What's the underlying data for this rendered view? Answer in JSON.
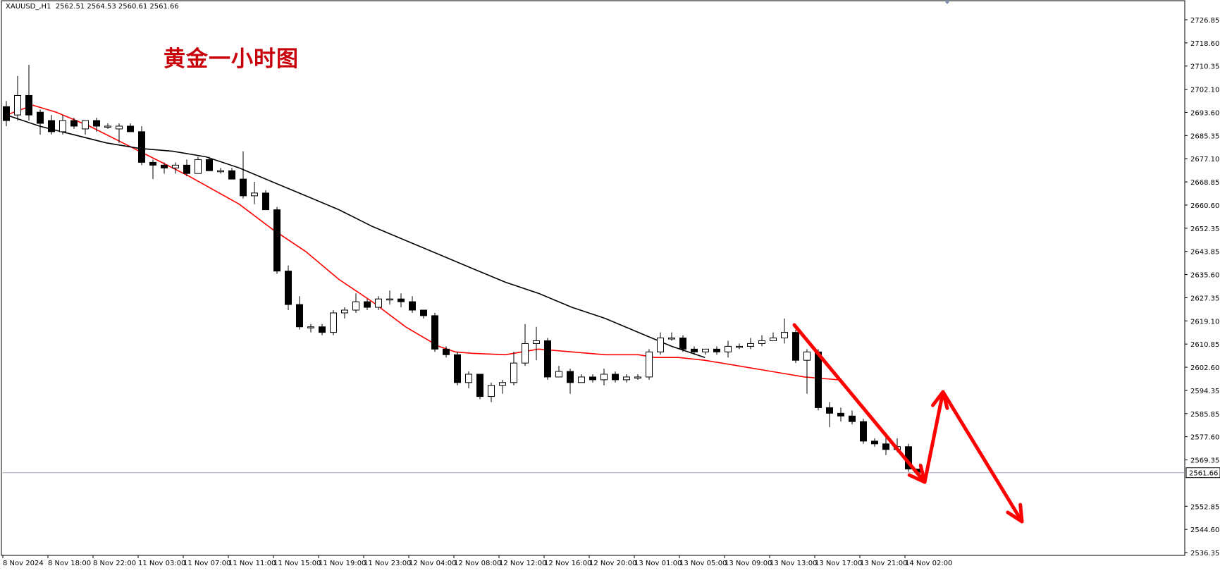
{
  "header": {
    "symbol": "XAUUSD_,H1",
    "ohlc": "2562.51 2564.53 2560.61 2561.66"
  },
  "overlay_title": "黄金一小时图",
  "colors": {
    "background": "#ffffff",
    "bull_fill": "#ffffff",
    "bear_fill": "#000000",
    "candle_outline": "#000000",
    "ma_fast": "#ff0000",
    "ma_slow": "#000000",
    "arrow": "#ff0000",
    "price_line": "#a0a8b8"
  },
  "chart_data": {
    "type": "candlestick",
    "title": "",
    "ylim": [
      2532,
      2731
    ],
    "y_ticks": [
      "2726.85",
      "2718.60",
      "2710.35",
      "2702.10",
      "2693.60",
      "2685.35",
      "2677.10",
      "2668.85",
      "2660.60",
      "2652.35",
      "2643.85",
      "2635.60",
      "2627.35",
      "2619.10",
      "2610.85",
      "2602.60",
      "2594.35",
      "2585.85",
      "2577.60",
      "2569.35",
      "2561.66",
      "2552.85",
      "2544.60",
      "2536.35"
    ],
    "current_price": "2561.66",
    "x_labels": [
      "8 Nov 2024",
      "8 Nov 18:00",
      "8 Nov 22:00",
      "11 Nov 03:00",
      "11 Nov 07:00",
      "11 Nov 11:00",
      "11 Nov 15:00",
      "11 Nov 19:00",
      "11 Nov 23:00",
      "12 Nov 04:00",
      "12 Nov 08:00",
      "12 Nov 12:00",
      "12 Nov 16:00",
      "12 Nov 20:00",
      "13 Nov 01:00",
      "13 Nov 05:00",
      "13 Nov 09:00",
      "13 Nov 13:00",
      "13 Nov 17:00",
      "13 Nov 21:00",
      "14 Nov 02:00"
    ],
    "candles": [
      [
        2693,
        2688,
        2695,
        2686
      ],
      [
        2690,
        2697,
        2704,
        2688
      ],
      [
        2697,
        2690,
        2708,
        2688
      ],
      [
        2691,
        2687,
        2692,
        2683
      ],
      [
        2688,
        2684,
        2690,
        2683
      ],
      [
        2684,
        2688,
        2690,
        2683
      ],
      [
        2688,
        2686,
        2689,
        2685
      ],
      [
        2685,
        2688,
        2688,
        2683
      ],
      [
        2688,
        2686,
        2689,
        2684
      ],
      [
        2686,
        2686,
        2687,
        2685
      ],
      [
        2685,
        2686,
        2687,
        2680
      ],
      [
        2686,
        2684,
        2687,
        2684
      ],
      [
        2684,
        2673,
        2686,
        2672
      ],
      [
        2673,
        2672,
        2674,
        2667
      ],
      [
        2672,
        2671,
        2673,
        2669
      ],
      [
        2671,
        2672,
        2673,
        2669
      ],
      [
        2672,
        2669,
        2674,
        2668
      ],
      [
        2669,
        2674,
        2675,
        2669
      ],
      [
        2674,
        2670,
        2675,
        2670
      ],
      [
        2670,
        2670,
        2671,
        2669
      ],
      [
        2670,
        2667,
        2671,
        2667
      ],
      [
        2667,
        2661,
        2677,
        2660
      ],
      [
        2661,
        2662,
        2666,
        2658
      ],
      [
        2662,
        2656,
        2663,
        2656
      ],
      [
        2656,
        2634,
        2657,
        2633
      ],
      [
        2634,
        2622,
        2636,
        2620
      ],
      [
        2622,
        2614,
        2625,
        2613
      ],
      [
        2614,
        2614,
        2615,
        2612
      ],
      [
        2614,
        2612,
        2615,
        2611
      ],
      [
        2612,
        2619,
        2620,
        2611
      ],
      [
        2619,
        2620,
        2621,
        2617
      ],
      [
        2620,
        2623,
        2626,
        2619
      ],
      [
        2623,
        2621,
        2624,
        2620
      ],
      [
        2621,
        2624,
        2625,
        2620
      ],
      [
        2624,
        2624,
        2627,
        2622
      ],
      [
        2624,
        2623,
        2626,
        2621
      ],
      [
        2623,
        2620,
        2625,
        2619
      ],
      [
        2620,
        2618,
        2620,
        2617
      ],
      [
        2618,
        2606,
        2619,
        2605
      ],
      [
        2606,
        2604,
        2607,
        2603
      ],
      [
        2604,
        2594,
        2605,
        2593
      ],
      [
        2594,
        2597,
        2598,
        2592
      ],
      [
        2597,
        2589,
        2597,
        2588
      ],
      [
        2589,
        2593,
        2594,
        2587
      ],
      [
        2593,
        2594,
        2595,
        2590
      ],
      [
        2594,
        2601,
        2605,
        2593
      ],
      [
        2601,
        2608,
        2615,
        2600
      ],
      [
        2608,
        2609,
        2614,
        2602
      ],
      [
        2609,
        2596,
        2610,
        2595
      ],
      [
        2596,
        2598,
        2600,
        2596
      ],
      [
        2598,
        2594,
        2599,
        2590
      ],
      [
        2594,
        2596,
        2597,
        2594
      ],
      [
        2596,
        2595,
        2597,
        2594
      ],
      [
        2595,
        2597,
        2599,
        2593
      ],
      [
        2597,
        2595,
        2598,
        2594
      ],
      [
        2595,
        2596,
        2597,
        2594
      ],
      [
        2596,
        2596,
        2597,
        2595
      ],
      [
        2596,
        2605,
        2606,
        2595
      ],
      [
        2605,
        2610,
        2612,
        2604
      ],
      [
        2610,
        2610,
        2612,
        2609
      ],
      [
        2610,
        2606,
        2611,
        2605
      ],
      [
        2606,
        2605,
        2607,
        2604
      ],
      [
        2605,
        2606,
        2606,
        2604
      ],
      [
        2606,
        2605,
        2607,
        2604
      ],
      [
        2605,
        2607,
        2609,
        2603
      ],
      [
        2607,
        2607,
        2608,
        2606
      ],
      [
        2607,
        2608,
        2610,
        2606
      ],
      [
        2608,
        2609,
        2611,
        2607
      ],
      [
        2609,
        2610,
        2612,
        2609
      ],
      [
        2610,
        2612,
        2617,
        2608
      ],
      [
        2612,
        2602,
        2613,
        2601
      ],
      [
        2602,
        2605,
        2606,
        2590
      ],
      [
        2605,
        2585,
        2606,
        2584
      ],
      [
        2585,
        2583,
        2587,
        2578
      ],
      [
        2583,
        2582,
        2585,
        2580
      ],
      [
        2582,
        2580,
        2584,
        2579
      ],
      [
        2580,
        2573,
        2581,
        2572
      ],
      [
        2573,
        2572,
        2574,
        2571
      ],
      [
        2572,
        2570,
        2575,
        2568
      ],
      [
        2570,
        2571,
        2574,
        2569
      ],
      [
        2571,
        2563,
        2572,
        2562
      ],
      [
        2563,
        2562,
        2565,
        2561
      ]
    ],
    "series": [
      {
        "type": "line",
        "values": [
          [
            0,
            2690
          ],
          [
            8,
            2693.5
          ],
          [
            15,
            2691
          ],
          [
            25,
            2686
          ],
          [
            35,
            2680
          ],
          [
            45,
            2674
          ],
          [
            55,
            2668
          ],
          [
            70,
            2658
          ],
          [
            80,
            2649
          ],
          [
            90,
            2641
          ],
          [
            100,
            2631
          ],
          [
            110,
            2623
          ],
          [
            120,
            2614
          ],
          [
            130,
            2607
          ],
          [
            135,
            2605
          ],
          [
            140,
            2604.5
          ],
          [
            150,
            2604
          ],
          [
            160,
            2606
          ],
          [
            170,
            2605
          ],
          [
            180,
            2604
          ],
          [
            190,
            2604
          ],
          [
            195,
            2603
          ],
          [
            202,
            2603
          ],
          [
            210,
            2602
          ],
          [
            220,
            2600
          ],
          [
            230,
            2598
          ],
          [
            240,
            2596
          ],
          [
            250,
            2595
          ]
        ]
      },
      {
        "type": "line",
        "values": [
          [
            0,
            2690
          ],
          [
            10,
            2686
          ],
          [
            20,
            2683
          ],
          [
            30,
            2680
          ],
          [
            40,
            2678
          ],
          [
            50,
            2677
          ],
          [
            60,
            2675
          ],
          [
            70,
            2671
          ],
          [
            80,
            2666
          ],
          [
            90,
            2661
          ],
          [
            100,
            2656
          ],
          [
            110,
            2650
          ],
          [
            120,
            2645
          ],
          [
            130,
            2640
          ],
          [
            140,
            2635
          ],
          [
            150,
            2630
          ],
          [
            160,
            2626
          ],
          [
            170,
            2621
          ],
          [
            180,
            2617
          ],
          [
            190,
            2612
          ],
          [
            200,
            2607
          ],
          [
            210,
            2603
          ]
        ]
      }
    ]
  },
  "annotations": {
    "arrow_1": {
      "from": [
        "13 Nov 13:00",
        2618
      ],
      "to": [
        "14 Nov 02:00",
        2561.66
      ]
    },
    "arrow_2": {
      "from": [
        "14 Nov 02:00",
        2561.66
      ],
      "to": [
        "14 Nov 05:00",
        2592
      ]
    },
    "arrow_3": {
      "from": [
        "14 Nov 05:00",
        2592
      ],
      "to": [
        "14 Nov 13:00",
        2547
      ]
    }
  }
}
